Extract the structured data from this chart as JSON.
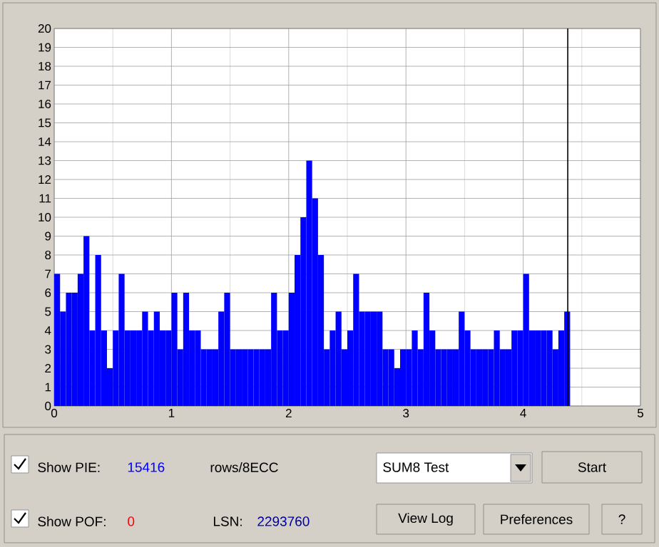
{
  "chart_data": {
    "type": "bar",
    "x": [
      0.025,
      0.075,
      0.125,
      0.175,
      0.225,
      0.275,
      0.325,
      0.375,
      0.425,
      0.475,
      0.525,
      0.575,
      0.625,
      0.675,
      0.725,
      0.775,
      0.825,
      0.875,
      0.925,
      0.975,
      1.025,
      1.075,
      1.125,
      1.175,
      1.225,
      1.275,
      1.325,
      1.375,
      1.425,
      1.475,
      1.525,
      1.575,
      1.625,
      1.675,
      1.725,
      1.775,
      1.825,
      1.875,
      1.925,
      1.975,
      2.025,
      2.075,
      2.125,
      2.175,
      2.225,
      2.275,
      2.325,
      2.375,
      2.425,
      2.475,
      2.525,
      2.575,
      2.625,
      2.675,
      2.725,
      2.775,
      2.825,
      2.875,
      2.925,
      2.975,
      3.025,
      3.075,
      3.125,
      3.175,
      3.225,
      3.275,
      3.325,
      3.375,
      3.425,
      3.475,
      3.525,
      3.575,
      3.625,
      3.675,
      3.725,
      3.775,
      3.825,
      3.875,
      3.925,
      3.975,
      4.025,
      4.075,
      4.125,
      4.175,
      4.225,
      4.275,
      4.325,
      4.375
    ],
    "values": [
      7,
      5,
      6,
      6,
      7,
      9,
      4,
      8,
      4,
      2,
      4,
      7,
      4,
      4,
      4,
      5,
      4,
      5,
      4,
      4,
      6,
      3,
      6,
      4,
      4,
      3,
      3,
      3,
      5,
      6,
      3,
      3,
      3,
      3,
      3,
      3,
      3,
      6,
      4,
      4,
      6,
      8,
      10,
      13,
      11,
      8,
      3,
      4,
      5,
      3,
      4,
      7,
      5,
      5,
      5,
      5,
      3,
      3,
      2,
      3,
      3,
      4,
      3,
      6,
      4,
      3,
      3,
      3,
      3,
      5,
      4,
      3,
      3,
      3,
      3,
      4,
      3,
      3,
      4,
      4,
      7,
      4,
      4,
      4,
      4,
      3,
      4,
      5
    ],
    "color": "#0000ff",
    "xlim": [
      0,
      5
    ],
    "ylim": [
      0,
      20
    ],
    "xticks": [
      0,
      1,
      2,
      3,
      4,
      5
    ],
    "yticks": [
      0,
      1,
      2,
      3,
      4,
      5,
      6,
      7,
      8,
      9,
      10,
      11,
      12,
      13,
      14,
      15,
      16,
      17,
      18,
      19,
      20
    ],
    "grid": true,
    "ref_lines": [
      {
        "axis": "x",
        "value": 4.38,
        "color": "#000000"
      }
    ],
    "annotations": [
      "Show PIE:",
      "15416",
      "rows/8ECC",
      "Show POF:",
      "0",
      "LSN:",
      "2293760",
      "SUM8 Test",
      "Start",
      "View Log",
      "Preferences",
      "?"
    ]
  }
}
